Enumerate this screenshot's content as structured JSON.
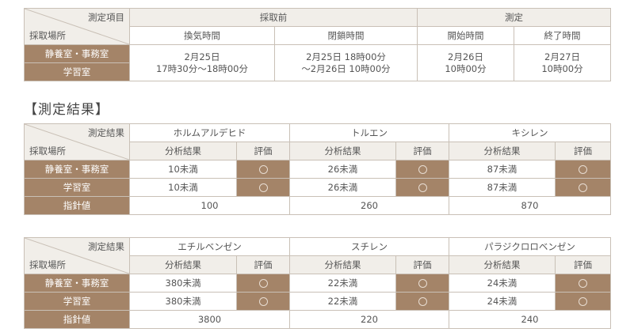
{
  "sampling": {
    "corner_top": "測定項目",
    "corner_bottom": "採取場所",
    "group_before": "採取前",
    "group_measure": "測定",
    "col_ventilation": "換気時間",
    "col_closure": "閉鎖時間",
    "col_start": "開始時間",
    "col_end": "終了時間",
    "row1": "静養室・事務室",
    "row2": "学習室",
    "ventilation_line1": "2月25日",
    "ventilation_line2": "17時30分〜18時00分",
    "closure_line1": "2月25日 18時00分",
    "closure_line2": "〜2月26日 10時00分",
    "start_line1": "2月26日",
    "start_line2": "10時00分",
    "end_line1": "2月27日",
    "end_line2": "10時00分"
  },
  "results_heading": "【測定結果】",
  "table2": {
    "corner_top": "測定結果",
    "corner_bottom": "採取場所",
    "substances": [
      "ホルムアルデヒド",
      "トルエン",
      "キシレン"
    ],
    "sub_result": "分析結果",
    "sub_eval": "評価",
    "rows": [
      {
        "place": "静養室・事務室",
        "values": [
          "10未満",
          "26未満",
          "87未満"
        ]
      },
      {
        "place": "学習室",
        "values": [
          "10未満",
          "26未満",
          "87未満"
        ]
      }
    ],
    "guideline_label": "指針値",
    "guidelines": [
      "100",
      "260",
      "870"
    ]
  },
  "table3": {
    "corner_top": "測定結果",
    "corner_bottom": "採取場所",
    "substances": [
      "エチルベンゼン",
      "スチレン",
      "パラジクロロベンゼン"
    ],
    "sub_result": "分析結果",
    "sub_eval": "評価",
    "rows": [
      {
        "place": "静養室・事務室",
        "values": [
          "380未満",
          "22未満",
          "24未満"
        ]
      },
      {
        "place": "学習室",
        "values": [
          "380未満",
          "22未満",
          "24未満"
        ]
      }
    ],
    "guideline_label": "指針値",
    "guidelines": [
      "3800",
      "220",
      "240"
    ]
  },
  "evaluation_mark": "circle-icon",
  "colors": {
    "brown": "#a48468",
    "header_bg": "#f1eee9",
    "border": "#c9c0b6"
  }
}
